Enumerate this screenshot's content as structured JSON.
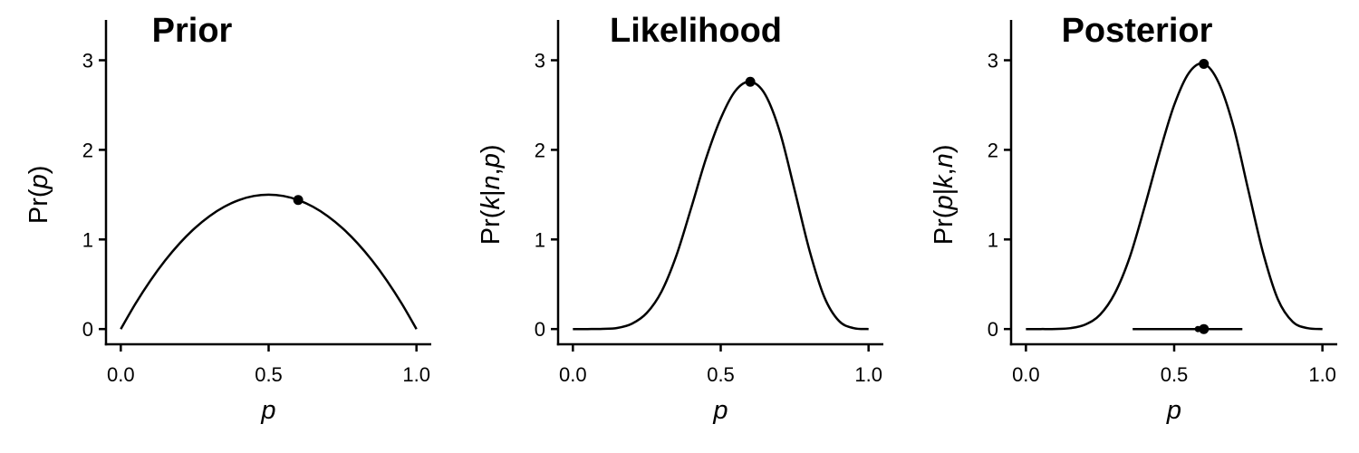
{
  "chart_data": [
    {
      "type": "line",
      "title": "Prior",
      "xlabel": [
        "p"
      ],
      "ylabel": [
        "Pr(",
        "p",
        ")"
      ],
      "xlim": [
        -0.05,
        1.05
      ],
      "ylim": [
        -0.17,
        3.45
      ],
      "xticks": [
        0.0,
        0.5,
        1.0
      ],
      "xtick_labels": [
        "0.0",
        "0.5",
        "1.0"
      ],
      "yticks": [
        0,
        1,
        2,
        3
      ],
      "ytick_labels": [
        "0",
        "1",
        "2",
        "3"
      ],
      "series": [
        {
          "x": [
            0.0,
            0.05,
            0.1,
            0.15,
            0.2,
            0.25,
            0.3,
            0.35,
            0.4,
            0.45,
            0.5,
            0.55,
            0.6,
            0.65,
            0.7,
            0.75,
            0.8,
            0.85,
            0.9,
            0.95,
            1.0
          ],
          "y": [
            0.0,
            0.285,
            0.54,
            0.765,
            0.96,
            1.125,
            1.26,
            1.365,
            1.44,
            1.485,
            1.5,
            1.485,
            1.44,
            1.365,
            1.26,
            1.125,
            0.96,
            0.765,
            0.54,
            0.285,
            0.0
          ]
        }
      ],
      "points": [
        {
          "x": 0.6,
          "y": 1.44
        }
      ]
    },
    {
      "type": "line",
      "title": "Likelihood",
      "xlabel": [
        "p"
      ],
      "ylabel": [
        "Pr(",
        "k",
        "|",
        "n",
        ",",
        "p",
        ")"
      ],
      "xlim": [
        -0.05,
        1.05
      ],
      "ylim": [
        -0.17,
        3.45
      ],
      "xticks": [
        0.0,
        0.5,
        1.0
      ],
      "xtick_labels": [
        "0.0",
        "0.5",
        "1.0"
      ],
      "yticks": [
        0,
        1,
        2,
        3
      ],
      "ytick_labels": [
        "0",
        "1",
        "2",
        "3"
      ],
      "series": [
        {
          "x": [
            0.0,
            0.05,
            0.1,
            0.15,
            0.2,
            0.25,
            0.3,
            0.35,
            0.4,
            0.45,
            0.5,
            0.55,
            0.6,
            0.65,
            0.7,
            0.75,
            0.8,
            0.85,
            0.9,
            0.95,
            1.0
          ],
          "y": [
            0.0,
            0.0,
            0.002,
            0.012,
            0.06,
            0.18,
            0.42,
            0.82,
            1.35,
            1.9,
            2.35,
            2.66,
            2.76,
            2.62,
            2.2,
            1.55,
            0.88,
            0.36,
            0.09,
            0.01,
            0.0
          ]
        }
      ],
      "points": [
        {
          "x": 0.6,
          "y": 2.76
        }
      ]
    },
    {
      "type": "line",
      "title": "Posterior",
      "xlabel": [
        "p"
      ],
      "ylabel": [
        "Pr(",
        "p",
        "|",
        "k",
        ",",
        "n",
        ")"
      ],
      "xlim": [
        -0.05,
        1.05
      ],
      "ylim": [
        -0.17,
        3.45
      ],
      "xticks": [
        0.0,
        0.5,
        1.0
      ],
      "xtick_labels": [
        "0.0",
        "0.5",
        "1.0"
      ],
      "yticks": [
        0,
        1,
        2,
        3
      ],
      "ytick_labels": [
        "0",
        "1",
        "2",
        "3"
      ],
      "series": [
        {
          "x": [
            0.0,
            0.05,
            0.1,
            0.15,
            0.2,
            0.25,
            0.3,
            0.35,
            0.4,
            0.45,
            0.5,
            0.55,
            0.6,
            0.65,
            0.7,
            0.75,
            0.8,
            0.85,
            0.9,
            0.95,
            1.0
          ],
          "y": [
            0.0,
            0.0,
            0.001,
            0.01,
            0.05,
            0.16,
            0.4,
            0.8,
            1.36,
            1.96,
            2.5,
            2.86,
            2.96,
            2.75,
            2.26,
            1.55,
            0.85,
            0.33,
            0.08,
            0.01,
            0.0
          ]
        }
      ],
      "points": [
        {
          "x": 0.6,
          "y": 2.96
        }
      ],
      "interval": {
        "low": 0.36,
        "high": 0.73,
        "y": 0.0,
        "points": [
          0.58,
          0.6
        ]
      }
    }
  ]
}
